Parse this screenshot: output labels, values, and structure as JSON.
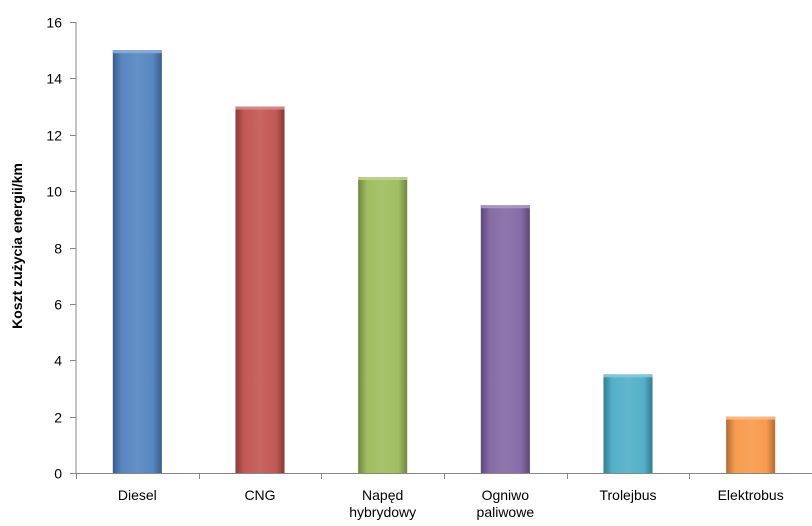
{
  "chart_data": {
    "type": "bar",
    "title": "",
    "xlabel": "",
    "ylabel": "Koszt zużycia energii/km",
    "ylim": [
      0,
      16
    ],
    "yticks": [
      0,
      2,
      4,
      6,
      8,
      10,
      12,
      14,
      16
    ],
    "grid": false,
    "legend": "none",
    "categories": [
      [
        "Diesel"
      ],
      [
        "CNG"
      ],
      [
        "Napęd",
        "hybrydowy"
      ],
      [
        "Ogniwo",
        "paliwowe"
      ],
      [
        "Trolejbus"
      ],
      [
        "Elektrobus"
      ]
    ],
    "values": [
      15,
      13,
      10.5,
      9.5,
      3.5,
      2
    ],
    "colors": [
      "#4F81BD",
      "#C0504D",
      "#9BBB59",
      "#8064A2",
      "#4BACC6",
      "#F79646"
    ],
    "axis_color": "#868686"
  }
}
